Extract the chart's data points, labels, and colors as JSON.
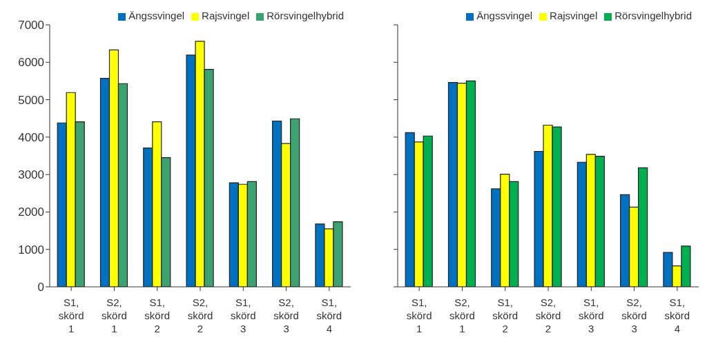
{
  "chart_data": [
    {
      "type": "bar",
      "categories": [
        "S1, skörd 1",
        "S2, skörd 1",
        "S1, skörd 2",
        "S2, skörd 2",
        "S1, skörd 3",
        "S2, skörd 3",
        "S1, skörd 4"
      ],
      "series": [
        {
          "name": "Ängssvingel",
          "color": "#0070c0",
          "values": [
            4380,
            5570,
            3710,
            6190,
            2780,
            4430,
            1680
          ]
        },
        {
          "name": "Rajsvingel",
          "color": "#ffff00",
          "values": [
            5190,
            6330,
            4410,
            6560,
            2740,
            3830,
            1550
          ]
        },
        {
          "name": "Rörsvingelhybrid",
          "color": "#3ca370",
          "values": [
            4410,
            5430,
            3450,
            5810,
            2810,
            4490,
            1740
          ]
        }
      ],
      "ylim": [
        0,
        7000
      ],
      "yticks": [
        0,
        1000,
        2000,
        3000,
        4000,
        5000,
        6000,
        7000
      ],
      "legend": "top right"
    },
    {
      "type": "bar",
      "categories": [
        "S1, skörd 1",
        "S2, skörd 1",
        "S1, skörd 2",
        "S2, skörd 2",
        "S1, skörd 3",
        "S2, skörd 3",
        "S1, skörd 4"
      ],
      "series": [
        {
          "name": "Ängssvingel",
          "color": "#0070c0",
          "values": [
            4120,
            5460,
            2620,
            3620,
            3330,
            2460,
            920
          ]
        },
        {
          "name": "Rajsvingel",
          "color": "#ffff00",
          "values": [
            3870,
            5440,
            3010,
            4320,
            3540,
            2130,
            560
          ]
        },
        {
          "name": "Rörsvingelhybrid",
          "color": "#00b050",
          "values": [
            4030,
            5500,
            2810,
            4270,
            3490,
            3180,
            1090
          ]
        }
      ],
      "ylim": [
        0,
        7000
      ],
      "yticks": [
        0,
        1000,
        2000,
        3000,
        4000,
        5000,
        6000,
        7000
      ],
      "legend": "top right",
      "tick_labels": "x"
    }
  ]
}
